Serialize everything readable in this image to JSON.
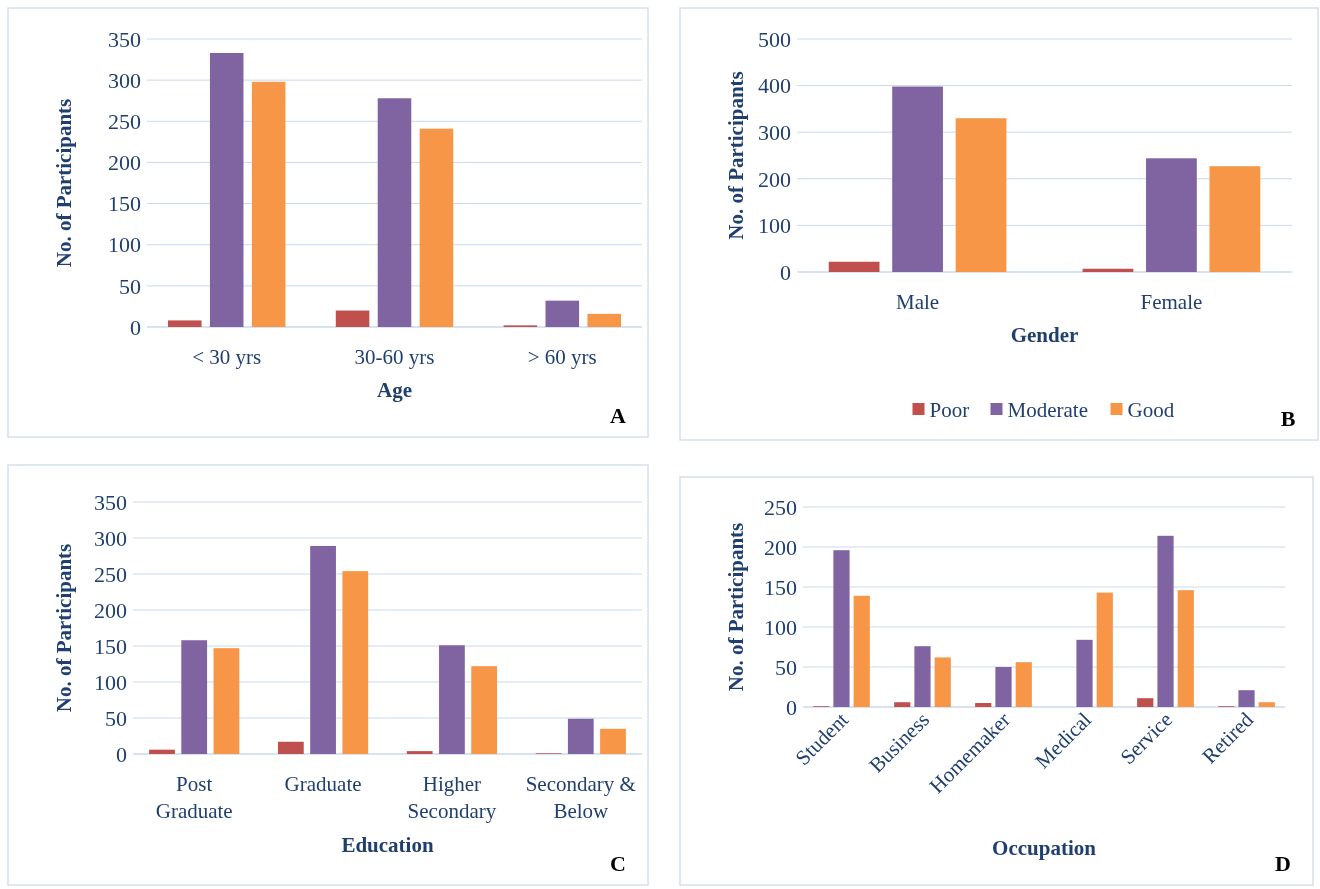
{
  "chart_data": [
    {
      "type": "bar",
      "categories": [
        "< 30 yrs",
        "30-60 yrs",
        "> 60 yrs"
      ],
      "series": [
        {
          "color": "#c0504d",
          "values": [
            8,
            20,
            2
          ]
        },
        {
          "color": "#8064a2",
          "values": [
            333,
            278,
            32
          ]
        },
        {
          "color": "#f79646",
          "values": [
            298,
            241,
            16
          ]
        }
      ],
      "ylim": [
        0,
        350
      ],
      "yticks": [
        0,
        50,
        100,
        150,
        200,
        250,
        300,
        350
      ],
      "xlabel": "Age",
      "ylabel": "No. of Participants",
      "grid": "y",
      "annotations": [
        "A"
      ]
    },
    {
      "type": "bar",
      "categories": [
        "Male",
        "Female"
      ],
      "series": [
        {
          "name": "Poor",
          "color": "#c0504d",
          "values": [
            22,
            7
          ]
        },
        {
          "name": "Moderate",
          "color": "#8064a2",
          "values": [
            398,
            244
          ]
        },
        {
          "name": "Good",
          "color": "#f79646",
          "values": [
            330,
            227
          ]
        }
      ],
      "ylim": [
        0,
        500
      ],
      "yticks": [
        0,
        100,
        200,
        300,
        400,
        500
      ],
      "xlabel": "Gender",
      "ylabel": "No. of Participants",
      "grid": "y",
      "legend": "bottom",
      "annotations": [
        "B"
      ]
    },
    {
      "type": "bar",
      "categories": [
        "Post Graduate",
        "Graduate",
        "Higher Secondary",
        "Secondary & Below"
      ],
      "series": [
        {
          "color": "#c0504d",
          "values": [
            6,
            17,
            4,
            1
          ]
        },
        {
          "color": "#8064a2",
          "values": [
            158,
            289,
            151,
            49
          ]
        },
        {
          "color": "#f79646",
          "values": [
            147,
            254,
            122,
            35
          ]
        }
      ],
      "ylim": [
        0,
        350
      ],
      "yticks": [
        0,
        50,
        100,
        150,
        200,
        250,
        300,
        350
      ],
      "xlabel": "Education",
      "ylabel": "No. of Participants",
      "grid": "y",
      "annotations": [
        "C"
      ]
    },
    {
      "type": "bar",
      "categories": [
        "Student",
        "Business",
        "Homemaker",
        "Medical",
        "Service",
        "Retired"
      ],
      "series": [
        {
          "color": "#c0504d",
          "values": [
            1,
            6,
            5,
            0,
            11,
            1
          ]
        },
        {
          "color": "#8064a2",
          "values": [
            196,
            76,
            50,
            84,
            214,
            21
          ]
        },
        {
          "color": "#f79646",
          "values": [
            139,
            62,
            56,
            143,
            146,
            6
          ]
        }
      ],
      "ylim": [
        0,
        250
      ],
      "yticks": [
        0,
        50,
        100,
        150,
        200,
        250
      ],
      "xlabel": "Occupation",
      "ylabel": "No. of Participants",
      "grid": "y",
      "annotations": [
        "D"
      ]
    }
  ]
}
